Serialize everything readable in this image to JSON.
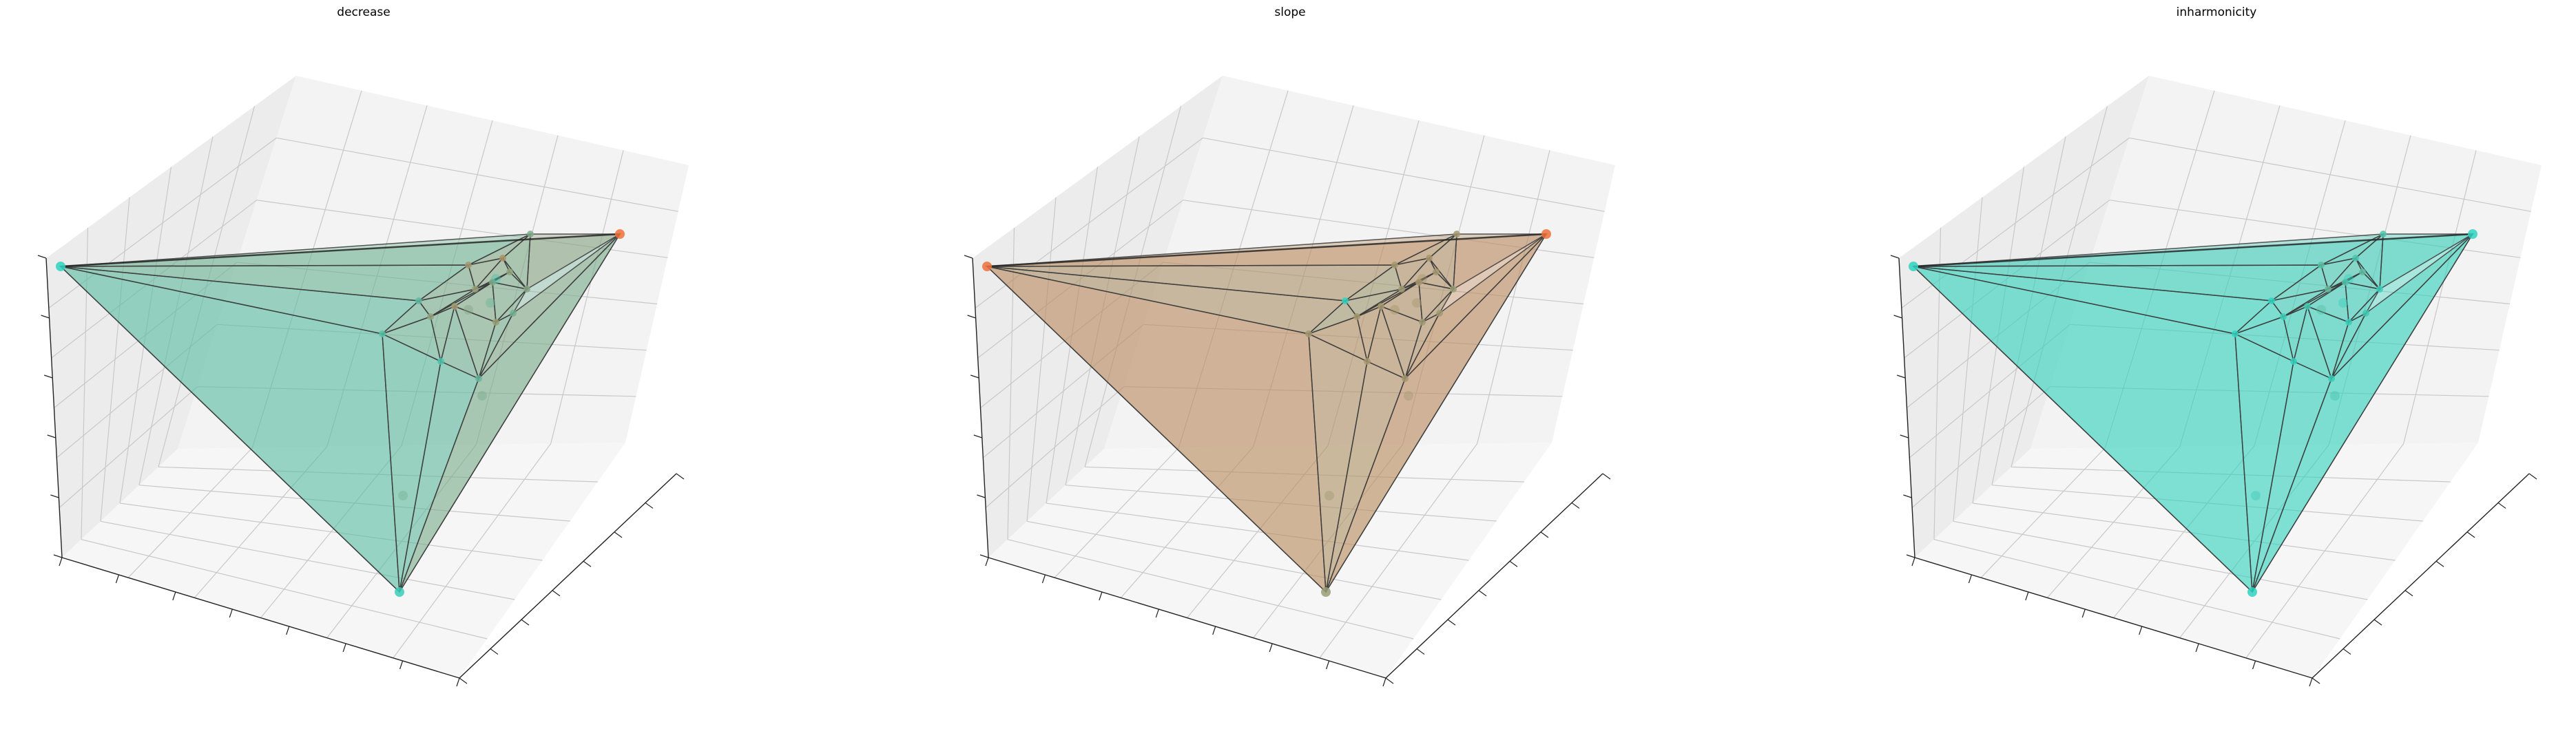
{
  "chart_data": [
    {
      "type": "surface3d",
      "title": "decrease",
      "colors": {
        "pane": "#efefef",
        "grid": "#c8c8c8",
        "edge": "#3a3a3a",
        "low": "#2fd3c0",
        "high": "#f0703a"
      },
      "color_scale": [
        0,
        1
      ],
      "vertex_values": [
        0.0,
        1.0,
        0.05,
        0.25,
        0.2,
        0.15,
        0.3,
        0.35,
        0.4,
        0.45,
        0.5,
        0.55,
        0.6,
        0.65,
        0.6,
        0.55,
        0.5,
        0.45
      ],
      "surface_tint": 0.32
    },
    {
      "type": "surface3d",
      "title": "slope",
      "colors": {
        "pane": "#efefef",
        "grid": "#c8c8c8",
        "edge": "#3a3a3a",
        "low": "#2fd3c0",
        "high": "#f0703a"
      },
      "color_scale": [
        0,
        1
      ],
      "vertex_values": [
        1.0,
        1.0,
        0.55,
        0.0,
        0.6,
        0.62,
        0.6,
        0.58,
        0.6,
        0.62,
        0.6,
        0.58,
        0.6,
        0.62,
        0.6,
        0.58,
        0.6,
        0.55
      ],
      "surface_tint": 0.62
    },
    {
      "type": "surface3d",
      "title": "inharmonicity",
      "colors": {
        "pane": "#efefef",
        "grid": "#c8c8c8",
        "edge": "#3a3a3a",
        "low": "#2fd3c0",
        "high": "#f0703a"
      },
      "color_scale": [
        0,
        1
      ],
      "vertex_values": [
        0.0,
        0.0,
        0.0,
        0.0,
        0.02,
        0.03,
        0.05,
        0.1,
        0.15,
        0.2,
        0.25,
        0.3,
        0.2,
        0.15,
        0.1,
        0.05,
        0.05,
        0.05
      ],
      "surface_tint": 0.05
    }
  ]
}
